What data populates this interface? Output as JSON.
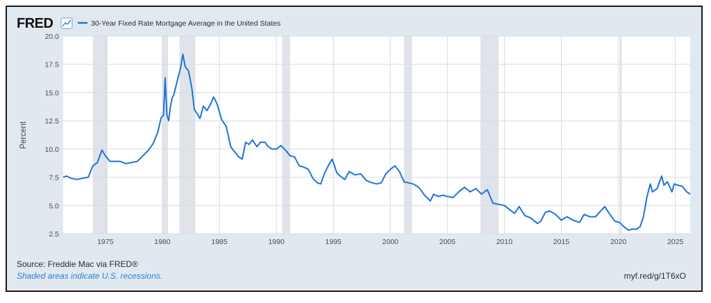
{
  "logo": {
    "text": "FRED",
    "icon": "trend-chart-icon"
  },
  "colors": {
    "series": "#1e73d8",
    "recession": "#e0e4ea",
    "background": "#e1e9f0",
    "plot": "#ffffff",
    "grid": "#d7dce2",
    "note": "#2c7fd1"
  },
  "footer": {
    "source": "Source: Freddie Mac via FRED®",
    "note": "Shaded areas indicate U.S. recessions.",
    "short_url": "myf.red/g/1T6xO"
  },
  "chart_data": {
    "type": "line",
    "title": "",
    "ylabel": "Percent",
    "xlabel": "",
    "xlim": [
      1971.3,
      2026.3
    ],
    "ylim": [
      2.5,
      20.0
    ],
    "yticks": [
      "2.5",
      "5.0",
      "7.5",
      "10.0",
      "12.5",
      "15.0",
      "17.5",
      "20.0"
    ],
    "xticks": [
      "1975",
      "1980",
      "1985",
      "1990",
      "1995",
      "2000",
      "2005",
      "2010",
      "2015",
      "2020",
      "2025"
    ],
    "grid": true,
    "legend": "top-left",
    "recessions": [
      [
        1973.9,
        1975.2
      ],
      [
        1980.0,
        1980.5
      ],
      [
        1981.5,
        1982.9
      ],
      [
        1990.5,
        1991.2
      ],
      [
        2001.2,
        2001.9
      ],
      [
        2007.9,
        2009.5
      ],
      [
        2020.1,
        2020.3
      ]
    ],
    "series": [
      {
        "name": "30-Year Fixed Rate Mortgage Average in the United States",
        "x": [
          1971.3,
          1971.6,
          1972.0,
          1972.5,
          1973.0,
          1973.5,
          1973.9,
          1974.3,
          1974.7,
          1975.0,
          1975.4,
          1975.8,
          1976.3,
          1976.8,
          1977.3,
          1977.8,
          1978.3,
          1978.8,
          1979.2,
          1979.6,
          1979.9,
          1980.1,
          1980.25,
          1980.4,
          1980.55,
          1980.7,
          1980.85,
          1981.0,
          1981.3,
          1981.6,
          1981.8,
          1982.0,
          1982.3,
          1982.6,
          1982.8,
          1983.0,
          1983.3,
          1983.6,
          1983.9,
          1984.2,
          1984.5,
          1984.8,
          1985.2,
          1985.6,
          1986.0,
          1986.3,
          1986.7,
          1987.0,
          1987.3,
          1987.6,
          1987.9,
          1988.3,
          1988.6,
          1989.0,
          1989.3,
          1989.6,
          1990.0,
          1990.4,
          1990.8,
          1991.2,
          1991.6,
          1992.0,
          1992.4,
          1992.8,
          1993.2,
          1993.6,
          1993.9,
          1994.2,
          1994.6,
          1994.9,
          1995.3,
          1995.6,
          1996.0,
          1996.4,
          1996.9,
          1997.4,
          1997.9,
          1998.4,
          1998.8,
          1999.2,
          1999.6,
          2000.0,
          2000.4,
          2000.8,
          2001.2,
          2001.6,
          2002.0,
          2002.5,
          2003.0,
          2003.5,
          2003.8,
          2004.2,
          2004.6,
          2005.0,
          2005.5,
          2006.0,
          2006.5,
          2007.0,
          2007.5,
          2008.0,
          2008.5,
          2009.0,
          2009.5,
          2010.0,
          2010.5,
          2010.9,
          2011.3,
          2011.8,
          2012.3,
          2012.9,
          2013.2,
          2013.6,
          2014.0,
          2014.5,
          2015.0,
          2015.5,
          2016.0,
          2016.6,
          2017.0,
          2017.5,
          2018.0,
          2018.8,
          2019.2,
          2019.7,
          2020.1,
          2020.5,
          2020.9,
          2021.2,
          2021.6,
          2021.9,
          2022.2,
          2022.5,
          2022.8,
          2023.0,
          2023.4,
          2023.8,
          2024.0,
          2024.3,
          2024.7,
          2024.9,
          2025.2,
          2025.6,
          2026.0,
          2026.3
        ],
        "values": [
          7.5,
          7.6,
          7.4,
          7.3,
          7.4,
          7.5,
          8.5,
          8.8,
          9.9,
          9.4,
          8.9,
          8.9,
          8.9,
          8.7,
          8.8,
          8.9,
          9.4,
          9.9,
          10.5,
          11.5,
          12.8,
          13.0,
          16.3,
          13.0,
          12.5,
          13.7,
          14.5,
          14.8,
          16.0,
          17.2,
          18.4,
          17.3,
          16.9,
          15.3,
          13.5,
          13.2,
          12.7,
          13.8,
          13.4,
          13.9,
          14.6,
          14.0,
          12.6,
          12.0,
          10.2,
          9.8,
          9.3,
          9.1,
          10.6,
          10.4,
          10.8,
          10.2,
          10.6,
          10.6,
          10.2,
          10.0,
          10.0,
          10.3,
          9.9,
          9.4,
          9.3,
          8.5,
          8.4,
          8.2,
          7.4,
          7.0,
          6.9,
          7.8,
          8.6,
          9.1,
          7.9,
          7.6,
          7.3,
          8.0,
          7.7,
          7.8,
          7.2,
          7.0,
          6.9,
          7.0,
          7.8,
          8.2,
          8.5,
          8.0,
          7.1,
          7.0,
          6.9,
          6.6,
          5.9,
          5.4,
          6.0,
          5.8,
          5.9,
          5.8,
          5.7,
          6.2,
          6.6,
          6.2,
          6.5,
          6.0,
          6.4,
          5.2,
          5.1,
          5.0,
          4.6,
          4.3,
          4.9,
          4.1,
          3.9,
          3.4,
          3.6,
          4.4,
          4.5,
          4.2,
          3.7,
          4.0,
          3.7,
          3.5,
          4.2,
          4.0,
          4.0,
          4.9,
          4.3,
          3.6,
          3.5,
          3.1,
          2.8,
          2.9,
          2.9,
          3.1,
          4.0,
          5.7,
          6.9,
          6.2,
          6.5,
          7.6,
          6.8,
          7.1,
          6.2,
          6.9,
          6.8,
          6.7,
          6.2,
          6.0
        ]
      }
    ]
  }
}
